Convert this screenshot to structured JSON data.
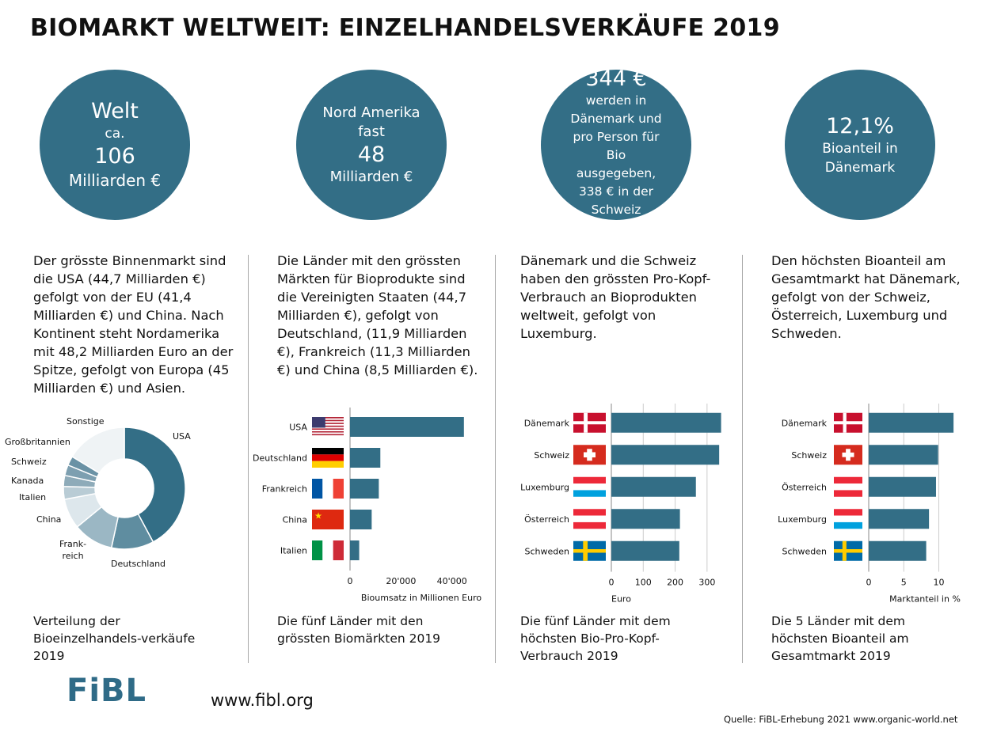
{
  "title": "BIOMARKT WELTWEIT: EINZELHANDELSVERKÄUFE 2019",
  "accent_color": "#336e86",
  "circles": [
    {
      "line1": "Welt",
      "line2": "ca.",
      "line3": "106",
      "line4": "Milliarden  €"
    },
    {
      "line1": "Nord Amerika",
      "line2": "fast",
      "line3": "48",
      "line4": "Milliarden €"
    },
    {
      "line1": "344 €",
      "line2": "werden in Dänemark und pro Person für Bio ausgegeben, 338 € in der Schweiz"
    },
    {
      "line1": "12,1%",
      "line2": "Bioanteil in Dänemark"
    }
  ],
  "paragraphs": [
    "Der grösste Binnenmarkt sind die USA (44,7 Milliarden €) gefolgt von der EU (41,4 Milliarden €) und China. Nach Kontinent steht Nordamerika mit 48,2 Milliarden Euro an der Spitze, gefolgt von Europa (45 Milliarden €) und Asien.",
    "Die Länder mit den grössten Märkten für Bioprodukte sind die Vereinigten Staaten (44,7 Milliarden €), gefolgt von Deutschland, (11,9 Milliarden €), Frankreich (11,3 Milliarden €) und China (8,5 Milliarden €).",
    "Dänemark und die Schweiz haben den grössten Pro-Kopf-Verbrauch an Bioprodukten weltweit, gefolgt von Luxemburg.",
    "Den höchsten Bioanteil am Gesamtmarkt hat Dänemark, gefolgt von der Schweiz, Österreich, Luxemburg und Schweden."
  ],
  "captions": [
    "Verteilung der Bioeinzelhandels-verkäufe 2019",
    "Die fünf Länder mit den grössten Biomärkten 2019",
    "Die fünf Länder mit dem höchsten Bio-Pro-Kopf-Verbrauch 2019",
    "Die 5 Länder mit dem höchsten Bioanteil am Gesamtmarkt 2019"
  ],
  "logo": "FiBL",
  "url": "www.fibl.org",
  "source": "Quelle: FiBL-Erhebung 2021 www.organic-world.net",
  "chart_data": [
    {
      "type": "pie",
      "donut": true,
      "categories": [
        "USA",
        "Deutschland",
        "Frank-reich",
        "China",
        "Italien",
        "Kanada",
        "Schweiz",
        "Großbritannien",
        "Sonstige"
      ],
      "values": [
        44.7,
        11.9,
        11.3,
        8.5,
        3.6,
        3.1,
        3.0,
        2.6,
        17.3
      ],
      "colors": [
        "#336e86",
        "#5f8da0",
        "#9bb7c4",
        "#dde7ec",
        "#b9ccd5",
        "#8eabb9",
        "#7d9fb0",
        "#6a92a5",
        "#eff3f5"
      ]
    },
    {
      "type": "bar",
      "orientation": "horizontal",
      "categories": [
        "USA",
        "Deutschland",
        "Frankreich",
        "China",
        "Italien"
      ],
      "flags": [
        "usa",
        "germany",
        "france",
        "china",
        "italy"
      ],
      "values": [
        44700,
        11900,
        11300,
        8500,
        3600
      ],
      "xticks": [
        "0",
        "20'000",
        "40'000"
      ],
      "xtick_values": [
        0,
        20000,
        40000
      ],
      "xlim": [
        0,
        46000
      ],
      "xlabel": "Bioumsatz in Millionen Euro",
      "color": "#336e86"
    },
    {
      "type": "bar",
      "orientation": "horizontal",
      "categories": [
        "Dänemark",
        "Schweiz",
        "Luxemburg",
        "Österreich",
        "Schweden"
      ],
      "flags": [
        "denmark",
        "switzerland",
        "luxembourg",
        "austria",
        "sweden"
      ],
      "values": [
        344,
        338,
        265,
        215,
        213
      ],
      "xticks": [
        "0",
        "100",
        "200",
        "300"
      ],
      "xtick_values": [
        0,
        100,
        200,
        300
      ],
      "xlim": [
        0,
        350
      ],
      "grid": true,
      "xlabel": "Euro",
      "color": "#336e86"
    },
    {
      "type": "bar",
      "orientation": "horizontal",
      "categories": [
        "Dänemark",
        "Schweiz",
        "Österreich",
        "Luxemburg",
        "Schweden"
      ],
      "flags": [
        "denmark",
        "switzerland",
        "austria",
        "luxembourg",
        "sweden"
      ],
      "values": [
        12.1,
        9.9,
        9.6,
        8.6,
        8.2
      ],
      "xticks": [
        "0",
        "5",
        "10"
      ],
      "xtick_values": [
        0,
        5,
        10
      ],
      "xlim": [
        0,
        12.2
      ],
      "grid": true,
      "xlabel": "Marktanteil in %",
      "color": "#336e86"
    }
  ]
}
